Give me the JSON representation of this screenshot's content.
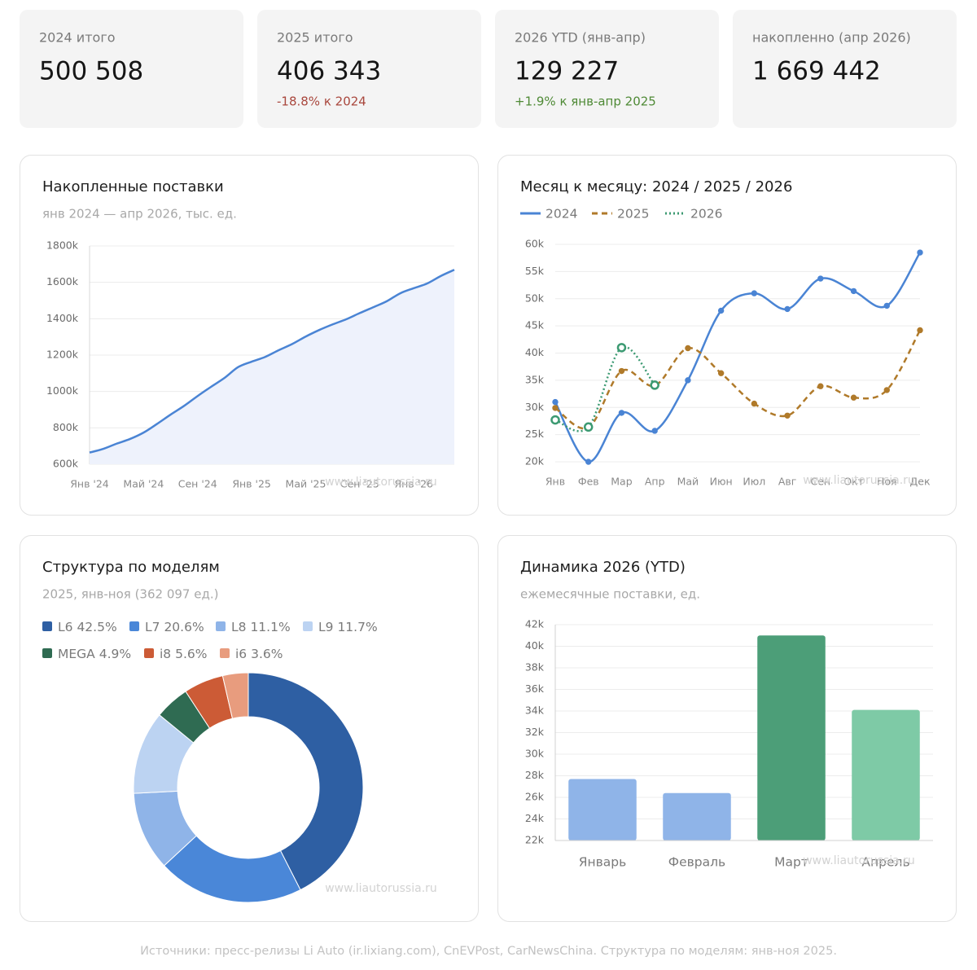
{
  "kpis": [
    {
      "label": "2024 итого",
      "value": "500 508"
    },
    {
      "label": "2025 итого",
      "value": "406 343",
      "delta": "-18.8% к 2024",
      "delta_color": "#a9473d"
    },
    {
      "label": "2026 YTD (янв-апр)",
      "value": "129 227",
      "delta": "+1.9% к янв-апр 2025",
      "delta_color": "#4f8a36"
    },
    {
      "label": "накопленно (апр 2026)",
      "value": "1 669 442"
    }
  ],
  "chart_data": [
    {
      "type": "area",
      "title": "Накопленные поставки",
      "subtitle": "янв 2024 — апр 2026, тыс. ед.",
      "categories": [
        "Янв '24",
        null,
        null,
        null,
        "Май '24",
        null,
        null,
        null,
        "Сен '24",
        null,
        null,
        null,
        "Янв '25",
        null,
        null,
        null,
        "Май '25",
        null,
        null,
        null,
        "Сен '25",
        null,
        null,
        null,
        "Янв '26",
        null,
        null,
        null
      ],
      "values": [
        664,
        684,
        713,
        739,
        774,
        822,
        873,
        921,
        975,
        1026,
        1075,
        1134,
        1164,
        1190,
        1227,
        1261,
        1302,
        1338,
        1369,
        1397,
        1431,
        1463,
        1496,
        1540,
        1568,
        1594,
        1635,
        1669
      ],
      "color": "#4a84d4",
      "fill": "#eef2fc",
      "ylim": [
        600,
        1800
      ],
      "yticks": [
        {
          "value": 600,
          "label": "600k"
        },
        {
          "value": 800,
          "label": "800k"
        },
        {
          "value": 1000,
          "label": "1000k"
        },
        {
          "value": 1200,
          "label": "1200k"
        },
        {
          "value": 1400,
          "label": "1400k"
        },
        {
          "value": 1600,
          "label": "1600k"
        },
        {
          "value": 1800,
          "label": "1800k"
        }
      ],
      "grid": true
    },
    {
      "type": "line",
      "title": "Месяц к месяцу: 2024 / 2025 / 2026",
      "categories": [
        "Янв",
        "Фев",
        "Мар",
        "Апр",
        "Май",
        "Июн",
        "Июл",
        "Авг",
        "Сен",
        "Окт",
        "Ноя",
        "Дек"
      ],
      "series": [
        {
          "name": "2024",
          "color": "#4a84d4",
          "dash": "solid",
          "values": [
            31.0,
            20.0,
            29.0,
            25.7,
            35.0,
            47.8,
            51.0,
            48.1,
            53.7,
            51.4,
            48.7,
            58.5
          ]
        },
        {
          "name": "2025",
          "color": "#b07a2a",
          "dash": "dashed",
          "values": [
            29.9,
            26.3,
            36.7,
            34.0,
            40.9,
            36.3,
            30.7,
            28.5,
            33.9,
            31.8,
            33.2,
            44.2
          ]
        },
        {
          "name": "2026",
          "color": "#3c9a72",
          "dash": "dotted",
          "values": [
            27.7,
            26.4,
            41.0,
            34.1,
            null,
            null,
            null,
            null,
            null,
            null,
            null,
            null
          ]
        }
      ],
      "ylim": [
        20,
        60
      ],
      "yticks": [
        {
          "value": 20,
          "label": "20k"
        },
        {
          "value": 25,
          "label": "25k"
        },
        {
          "value": 30,
          "label": "30k"
        },
        {
          "value": 35,
          "label": "35k"
        },
        {
          "value": 40,
          "label": "40k"
        },
        {
          "value": 45,
          "label": "45k"
        },
        {
          "value": 50,
          "label": "50k"
        },
        {
          "value": 55,
          "label": "55k"
        },
        {
          "value": 60,
          "label": "60k"
        }
      ],
      "grid": true,
      "legend": "top-left"
    },
    {
      "type": "donut",
      "title": "Структура по моделям",
      "subtitle": "2025, янв-ноя (362 097 ед.)",
      "categories": [
        "L6",
        "L7",
        "L8",
        "L9",
        "MEGA",
        "i8",
        "i6"
      ],
      "values": [
        42.5,
        20.6,
        11.1,
        11.7,
        4.9,
        5.6,
        3.6
      ],
      "value_labels": [
        "42.5%",
        "20.6%",
        "11.1%",
        "11.7%",
        "4.9%",
        "5.6%",
        "3.6%"
      ],
      "colors": [
        "#2e5fa3",
        "#4a87d8",
        "#8fb4e8",
        "#bcd3f2",
        "#2f6b52",
        "#cc5b36",
        "#e89c7e"
      ],
      "legend": "top-left"
    },
    {
      "type": "bar",
      "title": "Динамика 2026 (YTD)",
      "subtitle": "ежемесячные поставки, ед.",
      "categories": [
        "Январь",
        "Февраль",
        "Март",
        "Апрель"
      ],
      "values": [
        27.7,
        26.4,
        41.0,
        34.1
      ],
      "colors": [
        "#8fb4e8",
        "#8fb4e8",
        "#4c9e78",
        "#7ecaa6"
      ],
      "ylim": [
        22,
        42
      ],
      "yticks": [
        {
          "value": 22,
          "label": "22k"
        },
        {
          "value": 24,
          "label": "24k"
        },
        {
          "value": 26,
          "label": "26k"
        },
        {
          "value": 28,
          "label": "28k"
        },
        {
          "value": 30,
          "label": "30k"
        },
        {
          "value": 32,
          "label": "32k"
        },
        {
          "value": 34,
          "label": "34k"
        },
        {
          "value": 36,
          "label": "36k"
        },
        {
          "value": 38,
          "label": "38k"
        },
        {
          "value": 40,
          "label": "40k"
        },
        {
          "value": 42,
          "label": "42k"
        }
      ],
      "grid": true
    }
  ],
  "watermark": "www.liautorussia.ru",
  "footer": "Источники: пресс-релизы Li Auto (ir.lixiang.com), CnEVPost, CarNewsChina. Структура по моделям: янв-ноя 2025."
}
